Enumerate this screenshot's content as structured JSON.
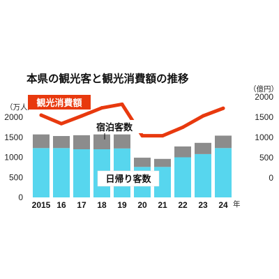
{
  "chart_data": {
    "type": "bar",
    "title": "本県の観光客と観光消費額の推移",
    "categories": [
      "2015",
      "16",
      "17",
      "18",
      "19",
      "20",
      "21",
      "22",
      "23",
      "24"
    ],
    "category_suffix": "年",
    "left_axis": {
      "unit": "（万人）",
      "ticks": [
        "0",
        "500",
        "1000",
        "1500",
        "2000"
      ],
      "range": [
        0,
        2000
      ]
    },
    "right_axis": {
      "unit": "（億円）",
      "ticks": [
        "0",
        "500",
        "1000",
        "1500",
        "2000"
      ],
      "range": [
        0,
        2000
      ]
    },
    "series": [
      {
        "name": "日帰り客数",
        "type": "bar",
        "stack": true,
        "color": "#57d6ee",
        "values": [
          1230,
          1230,
          1200,
          1200,
          1220,
          760,
          760,
          1000,
          1080,
          1230
        ]
      },
      {
        "name": "宿泊客数",
        "type": "bar",
        "stack": true,
        "color": "#8c8c8c",
        "values": [
          340,
          300,
          350,
          370,
          350,
          230,
          200,
          270,
          280,
          310
        ]
      },
      {
        "name": "観光消費額",
        "type": "line",
        "axis": "right",
        "color": "#e8390e",
        "values": [
          1550,
          1340,
          1530,
          1730,
          1820,
          1040,
          1040,
          1250,
          1530,
          1720
        ]
      }
    ],
    "grid": false,
    "legend": "inline labels"
  }
}
